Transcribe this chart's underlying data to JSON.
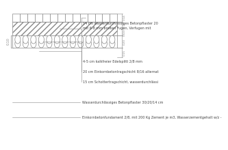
{
  "line_color": "#888888",
  "text_color": "#444444",
  "labels": [
    "14 cm wasserdurchlässiges Betonpflaster 20\nmit 6-8 mm breiten Fugen, Verfugen mit",
    "4-5 cm kalkfreier Edelsplitt 2/8 mm",
    "20 cm Einkornbetontragschicht 8/16 alternat",
    "15 cm Schottertragschicht, wasserdurchlässi"
  ],
  "bottom_labels": [
    "Wasserdurchlässiges Betonpflaster 30/20/14 cm",
    "Einkornbetonfundament 2/8, mit 200 Kg Zement je m3, Wasserzementgehalt w/z -"
  ],
  "dim_right": [
    "0.14",
    "0.04+0.03",
    "0.20",
    "0.15"
  ],
  "left_dim": "0.10",
  "num_pave_blocks": 14,
  "n_circ_cols": 13,
  "n_circ_rows": 2
}
